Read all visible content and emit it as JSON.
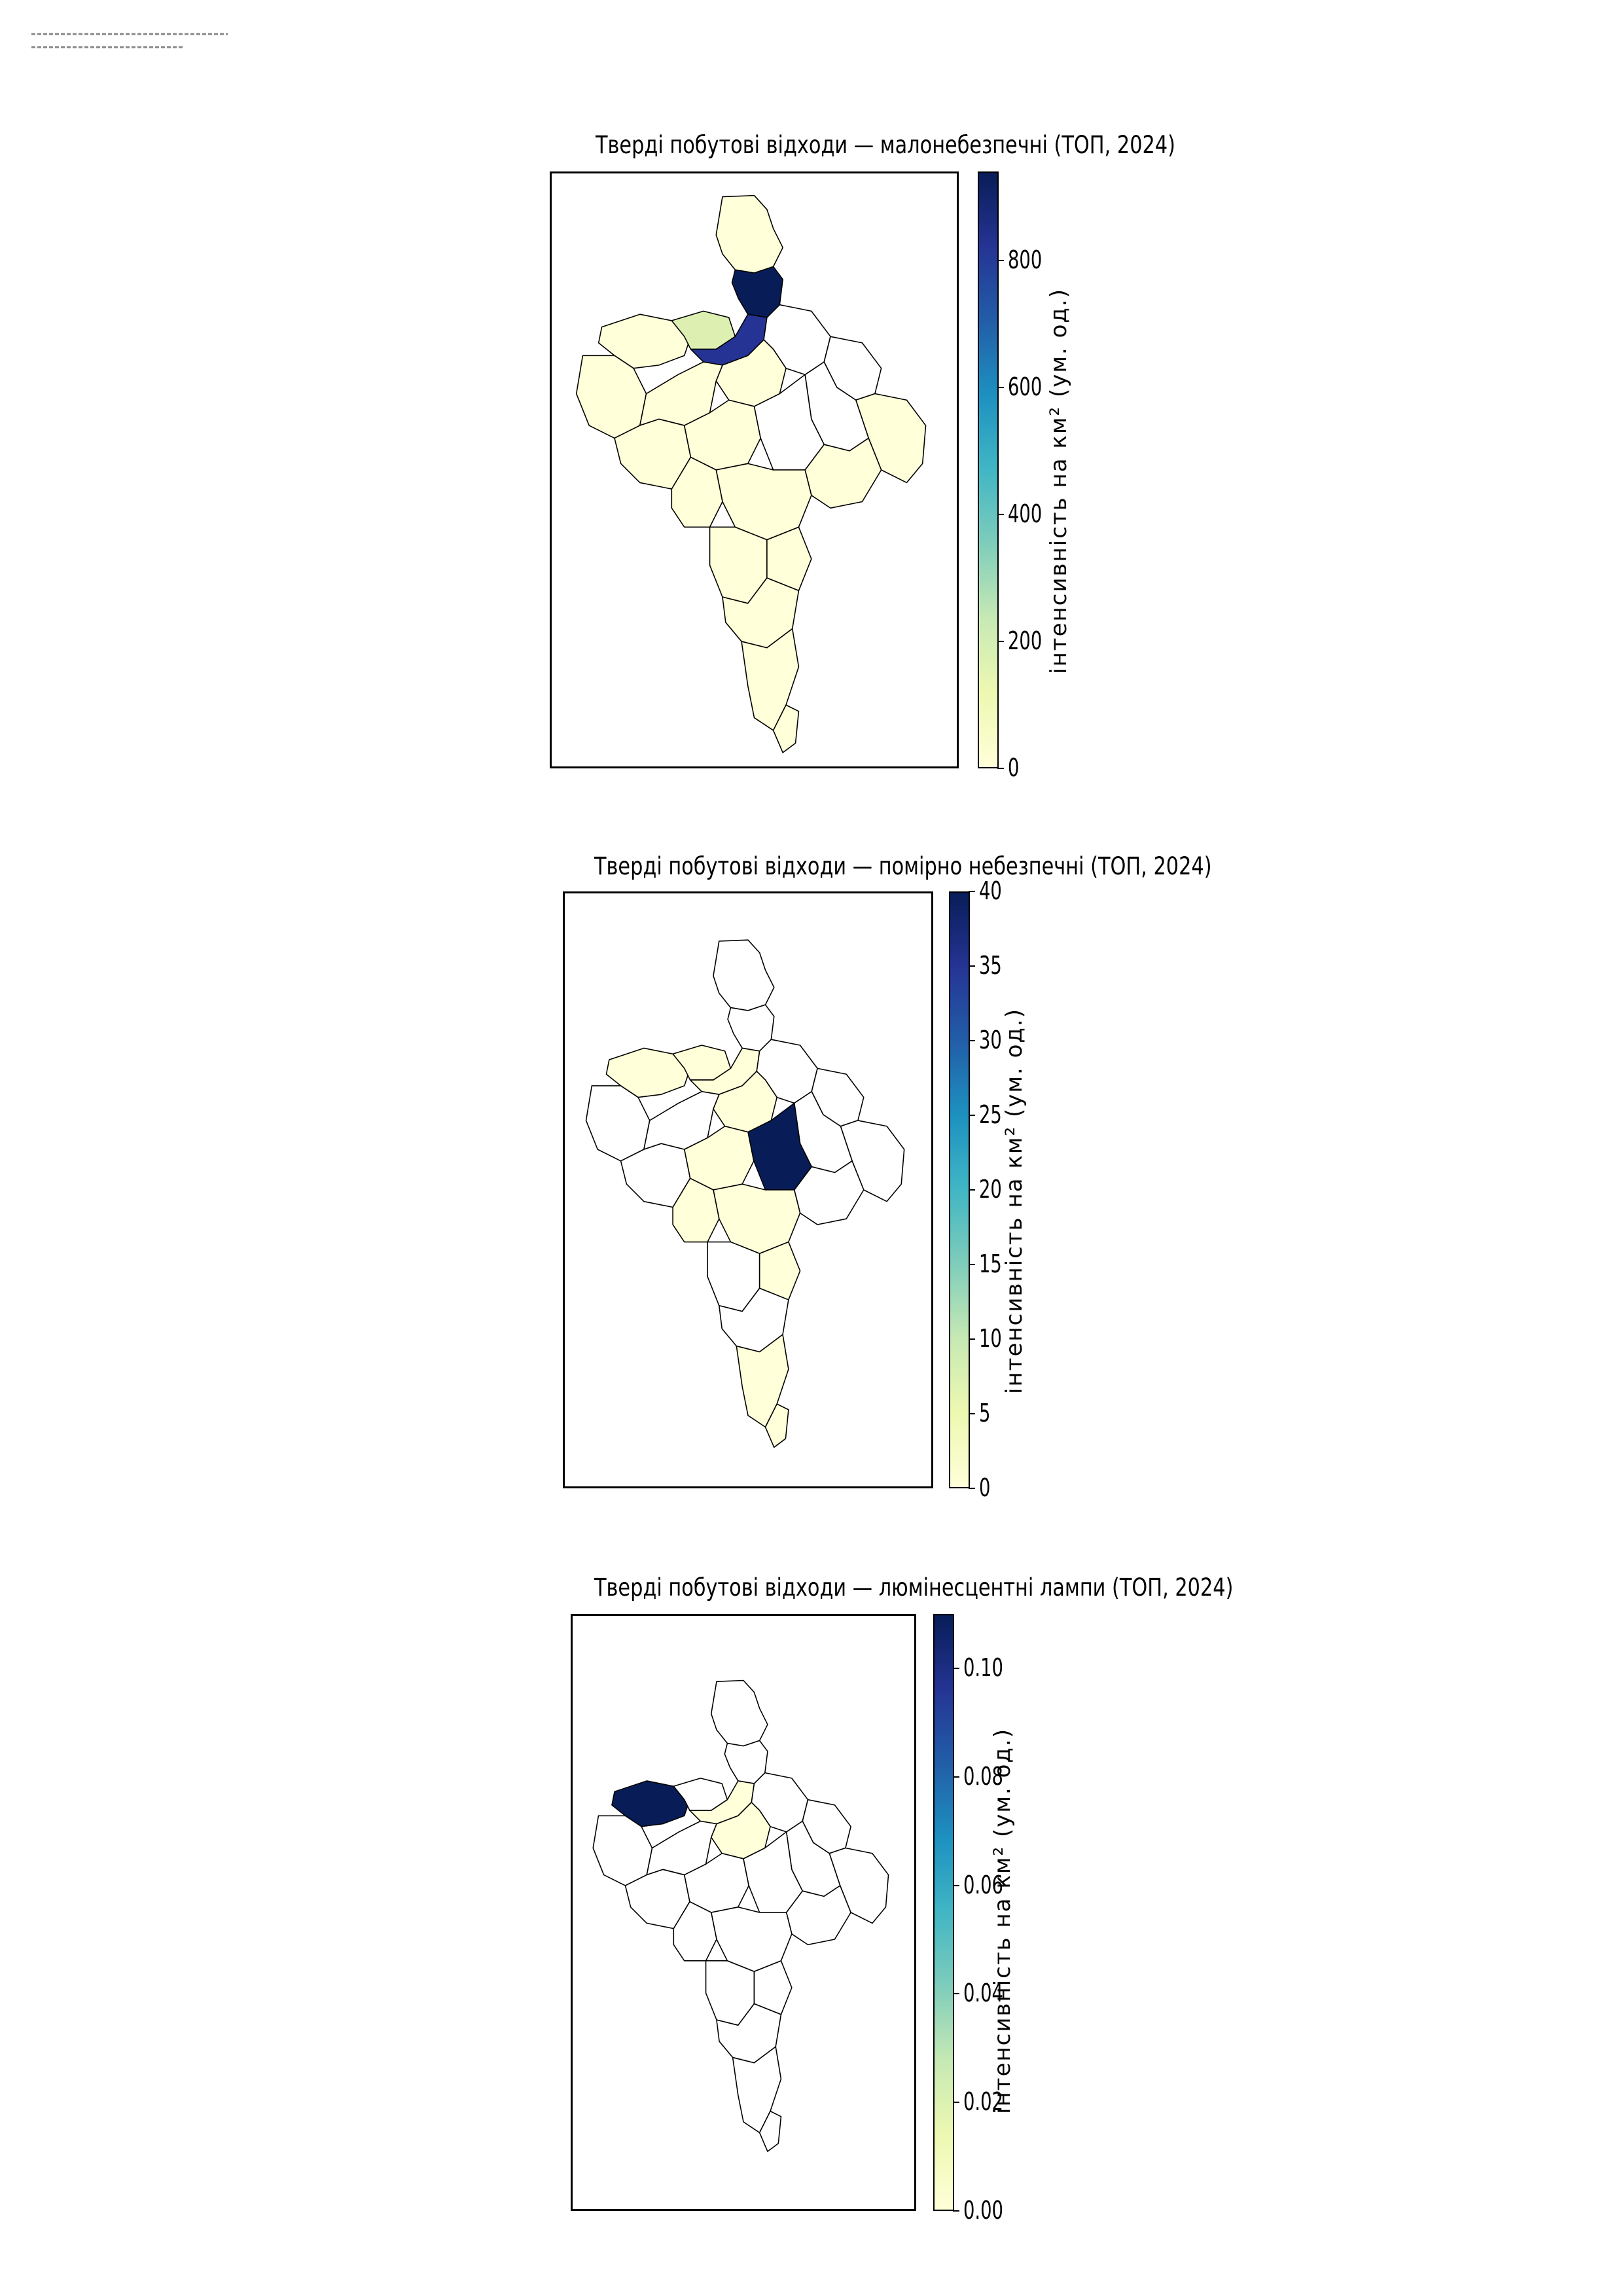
{
  "colors": {
    "cmap": [
      "#ffffd9",
      "#edf8b1",
      "#c7e9b4",
      "#7fcdbb",
      "#41b6c4",
      "#1d91c0",
      "#225ea8",
      "#253494",
      "#081d58"
    ],
    "region_empty": "#ffffff",
    "region_low": "#ffffd9",
    "region_high": "#08306b",
    "region_mid": "#ddf0b2",
    "border": "#000000"
  },
  "panels": [
    {
      "title": "Тверді побутові відходи — малонебезпечні (ТОП, 2024)",
      "colorbar_label": "інтенсивність на км² (ум. од.)",
      "colorbar_ticks": [
        "0",
        "200",
        "400",
        "600",
        "800"
      ],
      "colorbar_max": 940
    },
    {
      "title": "Тверді побутові відходи — помірно небезпечні (ТОП, 2024)",
      "colorbar_label": "інтенсивність на км² (ум. од.)",
      "colorbar_ticks": [
        "0",
        "5",
        "10",
        "15",
        "20",
        "25",
        "30",
        "35",
        "40"
      ],
      "colorbar_max": 40
    },
    {
      "title": "Тверді побутові відходи — люмінесцентні лампи (ТОП, 2024)",
      "colorbar_label": "інтенсивність на км² (ум. од.)",
      "colorbar_ticks": [
        "0.00",
        "0.02",
        "0.04",
        "0.06",
        "0.08",
        "0.10"
      ],
      "colorbar_max": 0.11
    }
  ]
}
